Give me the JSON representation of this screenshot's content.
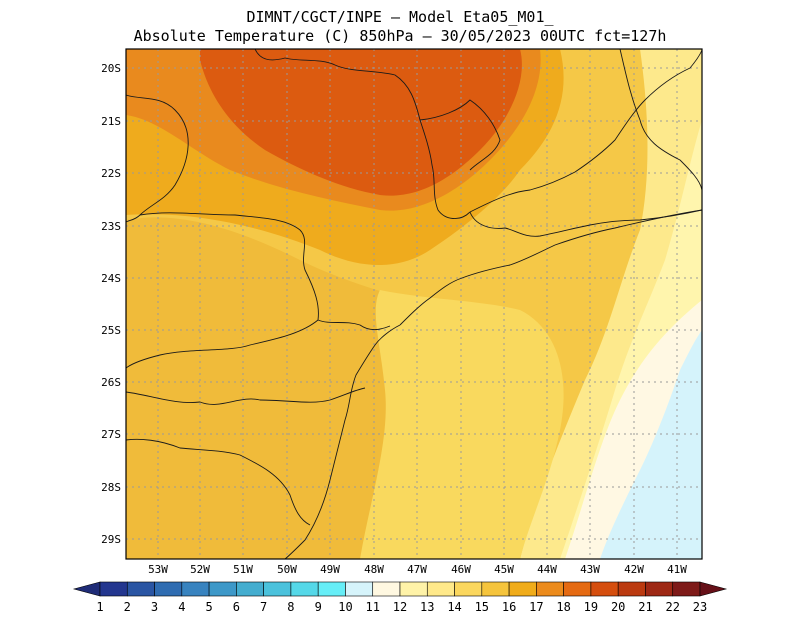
{
  "title": {
    "line1": "DIMNT/CGCT/INPE –  Model Eta05_M01_",
    "line2": "Absolute Temperature (C) 850hPa –  30/05/2023 00UTC fct=127h"
  },
  "map": {
    "lat_labels": [
      "20S",
      "21S",
      "22S",
      "23S",
      "24S",
      "25S",
      "26S",
      "27S",
      "28S",
      "29S"
    ],
    "lon_labels": [
      "53W",
      "52W",
      "51W",
      "50W",
      "49W",
      "48W",
      "47W",
      "46W",
      "45W",
      "44W",
      "43W",
      "42W",
      "41W"
    ]
  },
  "colorbar": {
    "labels": [
      "1",
      "2",
      "3",
      "4",
      "5",
      "6",
      "7",
      "8",
      "9",
      "10",
      "11",
      "12",
      "13",
      "14",
      "15",
      "16",
      "17",
      "18",
      "19",
      "20",
      "21",
      "22",
      "23"
    ],
    "colors": [
      "#23368f",
      "#2a55a3",
      "#2f6cb1",
      "#3883bf",
      "#3d98c8",
      "#44adcf",
      "#4bc2dc",
      "#55d8e8",
      "#66eef7",
      "#d6f4fb",
      "#fff8e1",
      "#fff3a8",
      "#ffe98a",
      "#fbd75e",
      "#f5c43c",
      "#f0ac1a",
      "#ec8b1c",
      "#e56a12",
      "#d54e0e",
      "#bb3a10",
      "#9e2814",
      "#7e1a18"
    ],
    "left_tip": "#1f2c77",
    "right_tip": "#661018"
  }
}
